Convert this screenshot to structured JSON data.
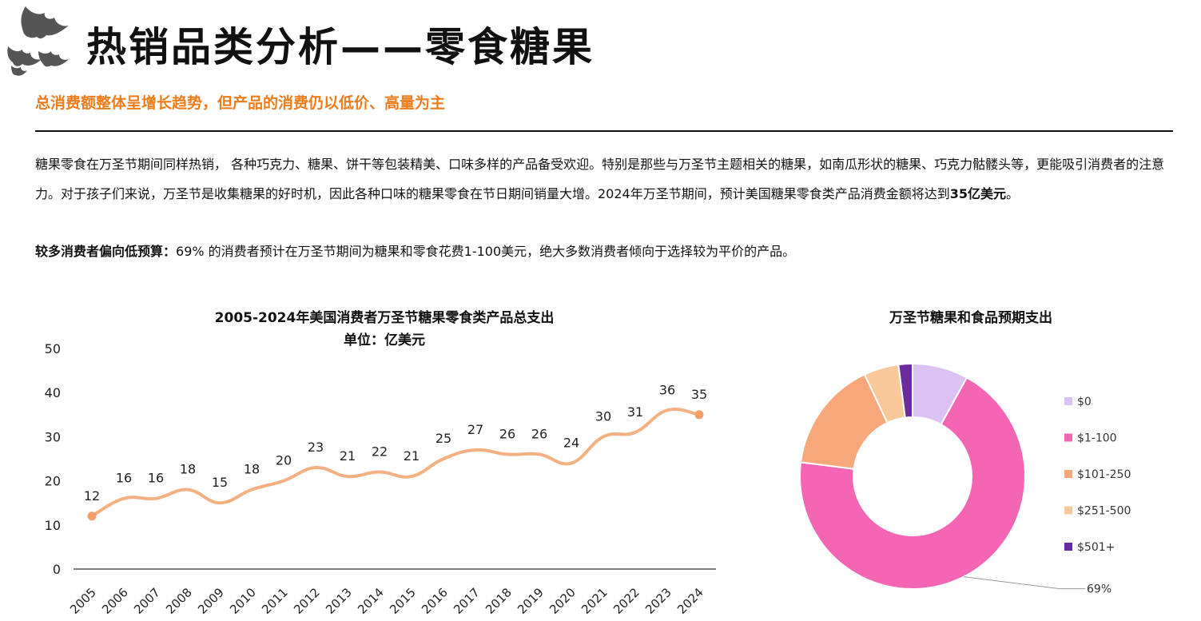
{
  "header": {
    "title": "热销品类分析——零食糖果",
    "subtitle": "总消费额整体呈增长趋势，但产品的消费仍以低价、高量为主",
    "decoration_icon": "bats-icon"
  },
  "body": {
    "paragraph1_text": "糖果零食在万圣节期间同样热销， 各种巧克力、糖果、饼干等包装精美、口味多样的产品备受欢迎。特别是那些与万圣节主题相关的糖果，如南瓜形状的糖果、巧克力骷髅头等，更能吸引消费者的注意力。对于孩子们来说，万圣节是收集糖果的好时机，因此各种口味的糖果零食在节日期间销量大增。2024年万圣节期间，预计美国糖果零食类产品消费金额将达到",
    "paragraph1_bold": "35亿美元",
    "paragraph1_end": "。",
    "paragraph2_bold": "较多消费者偏向低预算：",
    "paragraph2_text": "69% 的消费者预计在万圣节期间为糖果和零食花费1-100美元，绝大多数消费者倾向于选择较为平价的产品。"
  },
  "chart_data": [
    {
      "type": "line",
      "title": "2005-2024年美国消费者万圣节糖果零食类产品总支出",
      "subtitle": "单位：亿美元",
      "x": [
        "2005",
        "2006",
        "2007",
        "2008",
        "2009",
        "2010",
        "2011",
        "2012",
        "2013",
        "2014",
        "2015",
        "2016",
        "2017",
        "2018",
        "2019",
        "2020",
        "2021",
        "2022",
        "2023",
        "2024"
      ],
      "series": [
        {
          "values": [
            12,
            16,
            16,
            18,
            15,
            18,
            20,
            23,
            21,
            22,
            21,
            25,
            27,
            26,
            26,
            24,
            30,
            31,
            36,
            35
          ]
        }
      ],
      "ylim": [
        0,
        50
      ],
      "yticks": [
        0,
        10,
        20,
        30,
        40,
        50
      ],
      "data_labels": true,
      "grid": false,
      "color": "#f5b082",
      "marker_color": "#f49e6a"
    },
    {
      "type": "pie",
      "donut": true,
      "title": "万圣节糖果和食品预期支出",
      "categories": [
        "$0",
        "$1-100",
        "$101-250",
        "$251-500",
        "$501+"
      ],
      "values": [
        8,
        69,
        16,
        5,
        2
      ],
      "colors": [
        "#dcc1f5",
        "#f466b4",
        "#f7a77a",
        "#f9c99c",
        "#6a2ba0"
      ],
      "data_label": "69%",
      "legend": "right"
    }
  ]
}
